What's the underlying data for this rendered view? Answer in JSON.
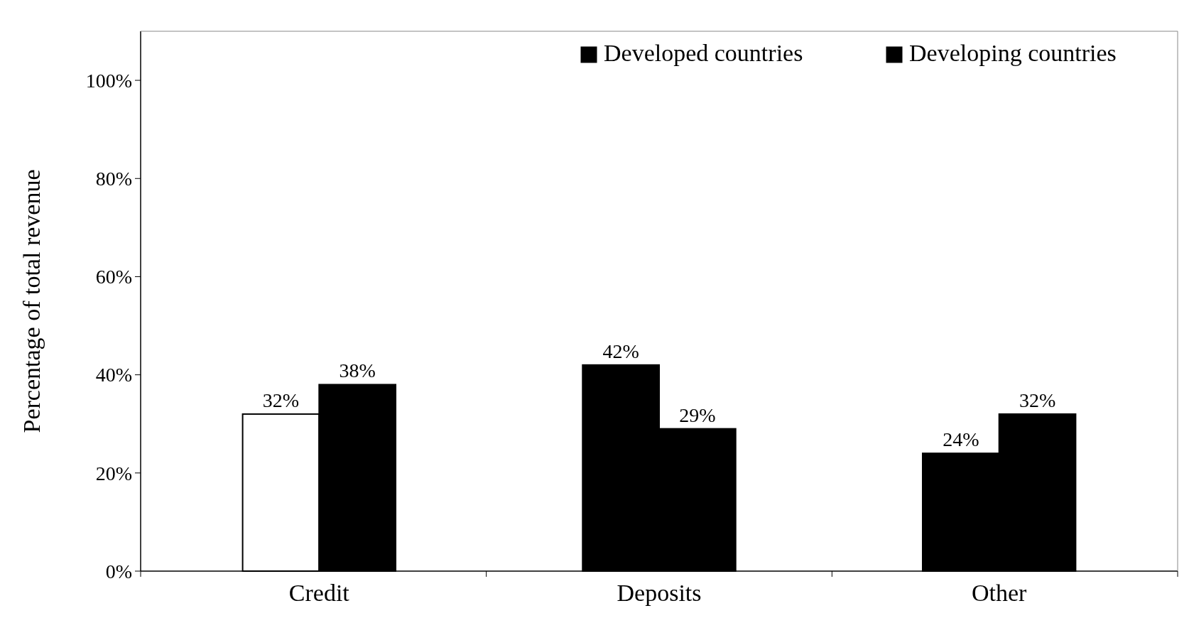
{
  "chart_data": {
    "type": "bar",
    "ylabel": "Percentage of total revenue",
    "categories": [
      "Credit",
      "Deposits",
      "Other"
    ],
    "series": [
      {
        "name": "Developed countries",
        "color": "#000000",
        "colors": [
          "#ffffff",
          "#000000",
          "#000000"
        ],
        "values": [
          32,
          42,
          24
        ],
        "value_labels": [
          "32%",
          "42%",
          "24%"
        ]
      },
      {
        "name": "Developing countries",
        "color": "#000000",
        "values": [
          38,
          29,
          32
        ],
        "value_labels": [
          "38%",
          "29%",
          "32%"
        ]
      }
    ],
    "ylim": [
      0,
      110
    ],
    "yticks": [
      {
        "value": 0,
        "label": "0%"
      },
      {
        "value": 20,
        "label": "20%"
      },
      {
        "value": 40,
        "label": "40%"
      },
      {
        "value": 60,
        "label": "60%"
      },
      {
        "value": 80,
        "label": "80%"
      },
      {
        "value": 100,
        "label": "100%"
      }
    ],
    "legend": "top right",
    "grid": false
  }
}
